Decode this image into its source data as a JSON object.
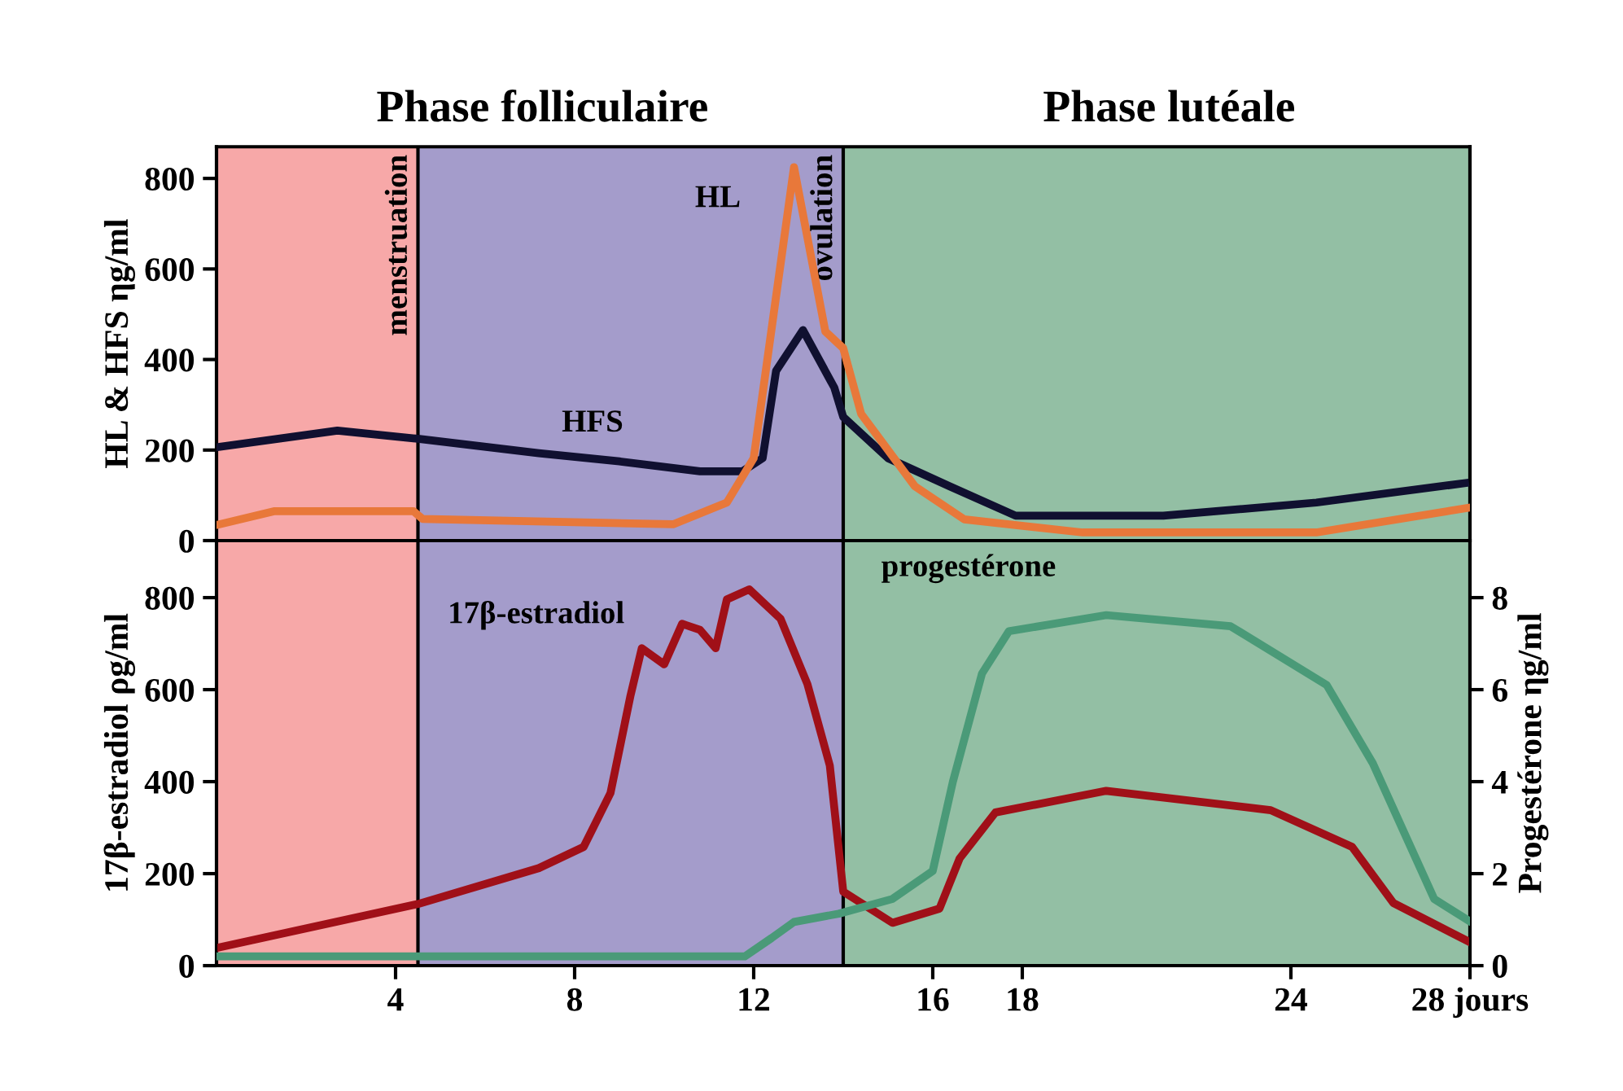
{
  "chart_data": [
    {
      "type": "line",
      "ylabel": "HL & HFS ηg/ml",
      "xlim": [
        0,
        28
      ],
      "ylim": [
        0,
        870
      ],
      "yticks": [
        0,
        200,
        400,
        600,
        800
      ],
      "xticks": [
        4,
        8,
        12,
        16,
        18,
        24,
        28
      ],
      "tick_labels": "y",
      "bands": [
        {
          "axis": "x",
          "from": 0,
          "to": 4.5,
          "color": "#f06060"
        },
        {
          "axis": "x",
          "from": 4.5,
          "to": 14,
          "color": "#5a4aa0"
        },
        {
          "axis": "x",
          "from": 14,
          "to": 28,
          "color": "#3a8a5a"
        }
      ],
      "ref_lines": [
        {
          "axis": "x",
          "value": 4.5,
          "label": "menstruation"
        },
        {
          "axis": "x",
          "value": 14,
          "label": "ovulation"
        }
      ],
      "annotations": [
        "Phase folliculaire",
        "Phase lutéale",
        "HL",
        "HFS"
      ],
      "series": [
        {
          "color": "#101030",
          "x": [
            0.07,
            2.7,
            4.5,
            7.2,
            9,
            10.8,
            11.75,
            12.2,
            12.5,
            13.1,
            13.8,
            14,
            15,
            16.375,
            17.85,
            21.15,
            24.57,
            27.89
          ],
          "values": [
            207,
            243,
            225,
            193,
            175,
            153,
            153,
            182,
            375,
            465,
            338,
            273,
            182,
            120,
            55,
            55,
            84,
            127
          ]
        },
        {
          "color": "#e8783a",
          "x": [
            0.07,
            1.3,
            4.4,
            4.6,
            10.2,
            11.4,
            12,
            12.9,
            13.6,
            14,
            14.4,
            15.6,
            16.7,
            19.35,
            24.57,
            28
          ],
          "values": [
            36,
            65,
            65,
            48,
            36,
            84,
            182,
            825,
            462,
            425,
            280,
            120,
            47,
            18,
            18,
            73
          ]
        }
      ]
    },
    {
      "type": "line",
      "ylabel": "17β-estradiol ρg/ml",
      "y2label": "Progestérone ηg/ml",
      "xlim": [
        0,
        28
      ],
      "ylim": [
        0,
        924
      ],
      "yticks": [
        0,
        200,
        400,
        600,
        800
      ],
      "y2lim": [
        0,
        9.24
      ],
      "y2ticks": [
        0,
        2,
        4,
        6,
        8
      ],
      "xticks": [
        4,
        8,
        12,
        16,
        18,
        24,
        {
          "value": 28,
          "label": "28 jours"
        }
      ],
      "bands": [
        {
          "axis": "x",
          "from": 0,
          "to": 4.5,
          "color": "#f06060"
        },
        {
          "axis": "x",
          "from": 4.5,
          "to": 14,
          "color": "#5a4aa0"
        },
        {
          "axis": "x",
          "from": 14,
          "to": 28,
          "color": "#3a8a5a"
        }
      ],
      "ref_lines": [
        {
          "axis": "x",
          "value": 4.5
        },
        {
          "axis": "x",
          "value": 14
        }
      ],
      "annotations": [
        "17β-estradiol",
        "progestérone"
      ],
      "series": [
        {
          "color": "#a01018",
          "x": [
            0.07,
            4.5,
            7.2,
            8.2,
            8.8,
            9.25,
            9.5,
            10,
            10.4,
            10.8,
            11.15,
            11.4,
            11.9,
            12.6,
            13.2,
            13.7,
            14,
            15.1,
            16.15,
            16.6,
            17.4,
            19.875,
            23.55,
            25.37,
            26.29,
            28
          ],
          "values": [
            40,
            134,
            212,
            258,
            375,
            588,
            690,
            655,
            743,
            730,
            690,
            796,
            818,
            754,
            612,
            435,
            161,
            93,
            124,
            233,
            333,
            380,
            338,
            258,
            136,
            51
          ]
        },
        {
          "color": "#4a9a78",
          "axis": "y2",
          "x": [
            0.07,
            11.8,
            12.4,
            12.9,
            13.9,
            15.1,
            16,
            16.45,
            17.1,
            17.7,
            19.875,
            22.65,
            24.8,
            25.83,
            27.2,
            28
          ],
          "values": [
            0.2,
            0.2,
            0.6,
            0.95,
            1.13,
            1.45,
            2.06,
            4.0,
            6.35,
            7.27,
            7.62,
            7.38,
            6.1,
            4.4,
            1.45,
            0.96
          ]
        }
      ]
    }
  ]
}
